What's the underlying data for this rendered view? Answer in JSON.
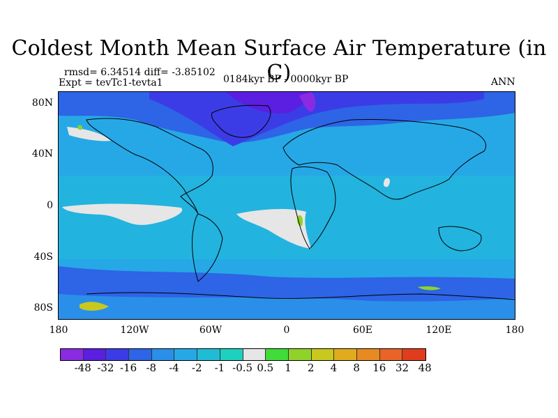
{
  "header": {
    "title": "Coldest Month Mean Surface Air Temperature (in C)",
    "rmsd_line": "rmsd= 6.34514 diff= -3.85102",
    "expt_line": "Expt = tevTc1-tevta1",
    "period": "0184kyr BP - 0000kyr BP",
    "season": "ANN"
  },
  "axes": {
    "lat_labels": [
      "80N",
      "40N",
      "0",
      "40S",
      "80S"
    ],
    "lat_values": [
      80,
      40,
      0,
      -40,
      -80
    ],
    "lon_labels": [
      "180",
      "120W",
      "60W",
      "0",
      "60E",
      "120E",
      "180"
    ],
    "lon_values": [
      -180,
      -120,
      -60,
      0,
      60,
      120,
      180
    ],
    "lat_range": [
      -90,
      90
    ],
    "lon_range": [
      -180,
      180
    ]
  },
  "colorbar": {
    "colors": [
      "#8a2be2",
      "#5a1fe0",
      "#3c3ce6",
      "#2e64e6",
      "#2a8fe8",
      "#26a8e6",
      "#20bcd6",
      "#1ed0bf",
      "#e6e6e6",
      "#3fdc3a",
      "#8fd22a",
      "#c8c81e",
      "#e0ac1e",
      "#e88a22",
      "#e86428",
      "#e03c1e"
    ],
    "labels": [
      "-48",
      "-32",
      "-16",
      "-8",
      "-4",
      "-2",
      "-1",
      "-0.5",
      "0.5",
      "1",
      "2",
      "4",
      "8",
      "16",
      "32",
      "48"
    ]
  }
}
